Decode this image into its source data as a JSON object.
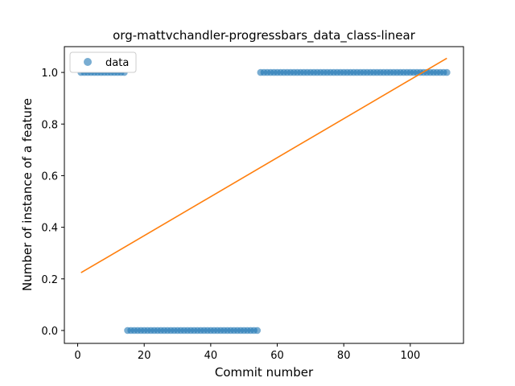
{
  "chart_data": {
    "type": "scatter",
    "title": "org-mattvchandler-progressbars_data_class-linear",
    "xlabel": "Commit number",
    "ylabel": "Number of instance of a feature",
    "xlim": [
      -4,
      116
    ],
    "ylim": [
      -0.05,
      1.1
    ],
    "xticks": [
      0,
      20,
      40,
      60,
      80,
      100
    ],
    "xtick_labels": [
      "0",
      "20",
      "40",
      "60",
      "80",
      "100"
    ],
    "yticks": [
      0.0,
      0.2,
      0.4,
      0.6,
      0.8,
      1.0
    ],
    "ytick_labels": [
      "0.0",
      "0.2",
      "0.4",
      "0.6",
      "0.8",
      "1.0"
    ],
    "grid": false,
    "legend": {
      "position": "top-left",
      "entries": [
        "data"
      ]
    },
    "series": [
      {
        "name": "data",
        "kind": "scatter",
        "color": "#1f77b4",
        "segments": [
          {
            "x_start": 1,
            "x_end": 14,
            "y": 1.0
          },
          {
            "x_start": 15,
            "x_end": 54,
            "y": 0.0
          },
          {
            "x_start": 55,
            "x_end": 111,
            "y": 1.0
          }
        ]
      },
      {
        "kind": "line",
        "color": "#ff7f0e",
        "x": [
          1,
          111
        ],
        "y": [
          0.224,
          1.055
        ]
      }
    ]
  }
}
